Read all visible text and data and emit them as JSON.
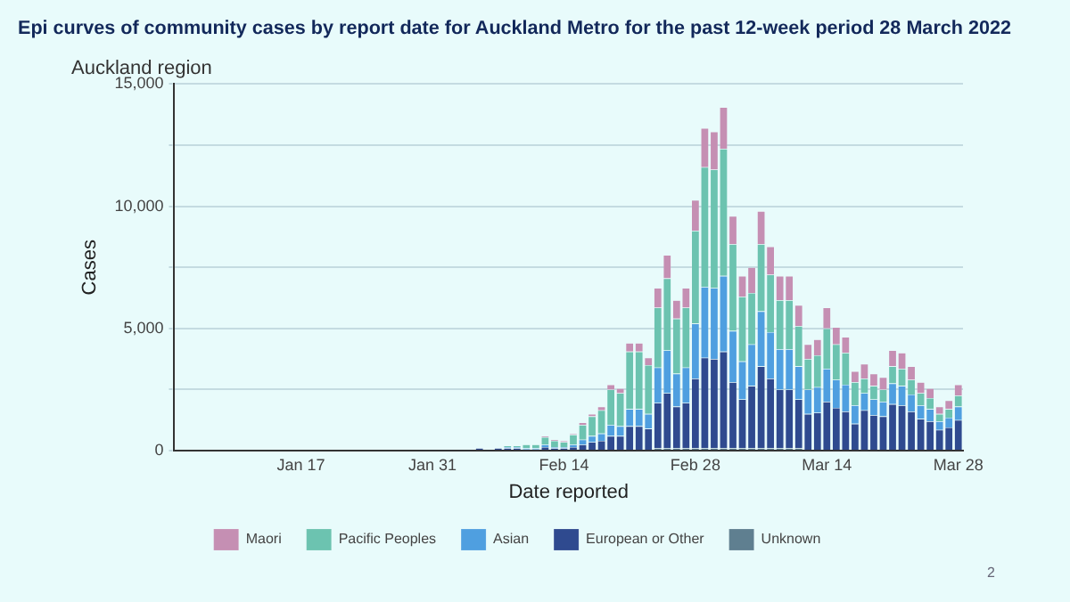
{
  "chart_data": {
    "type": "bar",
    "title": "Epi curves of community cases by report date for Auckland Metro for the past 12-week period 28 March 2022",
    "subtitle": "Auckland region",
    "xlabel": "Date reported",
    "ylabel": "Cases",
    "annotations": [
      "2"
    ],
    "categories": [
      null,
      null,
      null,
      null,
      null,
      null,
      null,
      null,
      null,
      null,
      null,
      null,
      null,
      "Jan 17",
      null,
      null,
      null,
      null,
      null,
      null,
      null,
      null,
      null,
      null,
      null,
      null,
      null,
      "Jan 31",
      null,
      null,
      null,
      null,
      null,
      null,
      null,
      null,
      null,
      null,
      null,
      null,
      null,
      "Feb 14",
      null,
      null,
      null,
      null,
      null,
      null,
      null,
      null,
      null,
      null,
      null,
      null,
      null,
      "Feb 28",
      null,
      null,
      null,
      null,
      null,
      null,
      null,
      null,
      null,
      null,
      null,
      null,
      null,
      "Mar 14",
      null,
      null,
      null,
      null,
      null,
      null,
      null,
      null,
      null,
      null,
      null,
      null,
      null,
      "Mar 28"
    ],
    "stacked": true,
    "grid": "y",
    "legend": "bottom",
    "ylim": [
      0,
      15000
    ],
    "yticks": [
      {
        "value": 0,
        "label": "0"
      },
      {
        "value": 2500,
        "label": null
      },
      {
        "value": 5000,
        "label": "5,000"
      },
      {
        "value": 7500,
        "label": null
      },
      {
        "value": 10000,
        "label": "10,000"
      },
      {
        "value": 12500,
        "label": null
      },
      {
        "value": 15000,
        "label": "15,000"
      }
    ],
    "series": [
      {
        "name": "Unknown",
        "color": "#5f7f90",
        "values": [
          0,
          0,
          0,
          0,
          0,
          0,
          0,
          0,
          0,
          0,
          0,
          0,
          0,
          0,
          0,
          0,
          0,
          0,
          0,
          0,
          0,
          0,
          0,
          0,
          0,
          0,
          0,
          0,
          0,
          0,
          0,
          0,
          0,
          0,
          0,
          0,
          0,
          0,
          0,
          0,
          0,
          0,
          0,
          0,
          0,
          0,
          0,
          0,
          0,
          0,
          0,
          100,
          100,
          100,
          100,
          100,
          100,
          100,
          100,
          100,
          100,
          100,
          100,
          100,
          100,
          100,
          100,
          0,
          0,
          0,
          0,
          0,
          0,
          0,
          0,
          0,
          0,
          0,
          0,
          0,
          0,
          0,
          0,
          0
        ]
      },
      {
        "name": "European or Other",
        "color": "#2f4a8f",
        "values": [
          0,
          0,
          0,
          0,
          0,
          0,
          0,
          0,
          0,
          0,
          0,
          0,
          0,
          0,
          0,
          0,
          0,
          0,
          0,
          0,
          0,
          0,
          0,
          0,
          0,
          0,
          50,
          50,
          50,
          50,
          50,
          50,
          100,
          50,
          100,
          100,
          100,
          50,
          50,
          150,
          100,
          100,
          150,
          250,
          350,
          400,
          600,
          600,
          1000,
          1000,
          900,
          1850,
          2250,
          1700,
          1850,
          2850,
          3700,
          3650,
          3950,
          2700,
          2000,
          2550,
          3350,
          2850,
          2400,
          2400,
          2000,
          1500,
          1550,
          2000,
          1750,
          1600,
          1100,
          1650,
          1450,
          1400,
          1900,
          1850,
          1600,
          1300,
          1200,
          850,
          950,
          1250
        ]
      },
      {
        "name": "Asian",
        "color": "#4f9fe0",
        "values": [
          0,
          0,
          0,
          0,
          0,
          0,
          0,
          0,
          0,
          0,
          0,
          0,
          0,
          0,
          0,
          0,
          0,
          0,
          0,
          0,
          0,
          0,
          0,
          0,
          0,
          0,
          0,
          0,
          0,
          0,
          0,
          0,
          0,
          0,
          0,
          50,
          50,
          50,
          50,
          100,
          50,
          50,
          100,
          200,
          250,
          300,
          450,
          400,
          700,
          700,
          600,
          1450,
          1750,
          1350,
          1450,
          2250,
          2900,
          2900,
          3100,
          2100,
          1550,
          1700,
          2250,
          1900,
          1650,
          1650,
          1350,
          1000,
          1050,
          1350,
          1150,
          1100,
          750,
          700,
          650,
          600,
          850,
          800,
          700,
          550,
          500,
          350,
          400,
          550
        ]
      },
      {
        "name": "Pacific Peoples",
        "color": "#6cc3b0",
        "values": [
          0,
          0,
          0,
          0,
          0,
          0,
          0,
          0,
          0,
          0,
          0,
          0,
          0,
          0,
          0,
          0,
          0,
          0,
          0,
          0,
          0,
          0,
          0,
          0,
          0,
          0,
          0,
          0,
          0,
          0,
          0,
          0,
          0,
          0,
          0,
          50,
          50,
          150,
          150,
          300,
          250,
          200,
          400,
          600,
          800,
          950,
          1450,
          1350,
          2350,
          2350,
          2000,
          2450,
          2950,
          2250,
          2450,
          3800,
          4900,
          4850,
          5200,
          3550,
          2650,
          2100,
          2750,
          2350,
          2000,
          2000,
          1650,
          1250,
          1300,
          1650,
          1450,
          1300,
          950,
          600,
          550,
          500,
          700,
          700,
          600,
          500,
          450,
          300,
          350,
          450
        ]
      },
      {
        "name": "Maori",
        "color": "#c58fb3",
        "values": [
          0,
          0,
          0,
          0,
          0,
          0,
          0,
          0,
          0,
          0,
          0,
          0,
          0,
          0,
          0,
          0,
          0,
          0,
          0,
          0,
          0,
          0,
          0,
          0,
          0,
          0,
          0,
          0,
          0,
          0,
          0,
          0,
          0,
          0,
          0,
          0,
          0,
          0,
          0,
          50,
          50,
          50,
          50,
          100,
          100,
          150,
          200,
          200,
          350,
          350,
          300,
          800,
          950,
          750,
          800,
          1250,
          1600,
          1550,
          1700,
          1150,
          850,
          1050,
          1350,
          1150,
          1000,
          1000,
          850,
          600,
          650,
          850,
          700,
          650,
          450,
          600,
          500,
          500,
          650,
          650,
          550,
          450,
          400,
          300,
          350,
          450
        ]
      }
    ]
  }
}
